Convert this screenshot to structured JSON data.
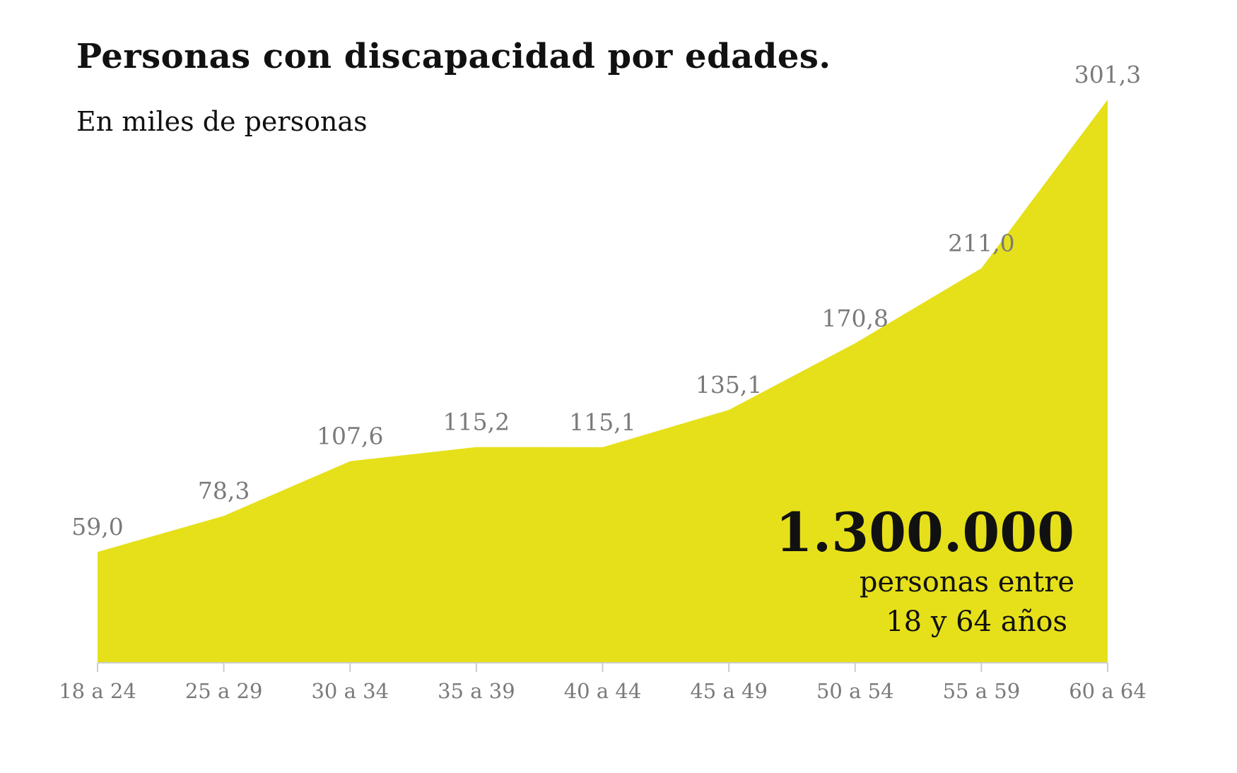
{
  "title": "Personas con discapacidad por edades.",
  "subtitle": "En miles de personas",
  "chart_data": {
    "type": "area",
    "categories": [
      "18 a 24",
      "25 a 29",
      "30 a 34",
      "35 a 39",
      "40 a 44",
      "45 a 49",
      "50 a 54",
      "55 a 59",
      "60 a 64"
    ],
    "values": [
      59.0,
      78.3,
      107.6,
      115.2,
      115.1,
      135.1,
      170.8,
      211.0,
      301.3
    ],
    "value_labels": [
      "59,0",
      "78,3",
      "107,6",
      "115,2",
      "115,1",
      "135,1",
      "170,8",
      "211,0",
      "301,3"
    ],
    "title": "Personas con discapacidad por edades.",
    "subtitle": "En miles de personas",
    "ylim": [
      0,
      301.3
    ],
    "grid": false,
    "fill_color": "#e6e01a",
    "label_color": "#7a7a7a",
    "axis_color": "#cccccc"
  },
  "highlight": {
    "value": "1.300.000",
    "caption_line1": "personas entre",
    "caption_line2": "18 y 64 años"
  }
}
